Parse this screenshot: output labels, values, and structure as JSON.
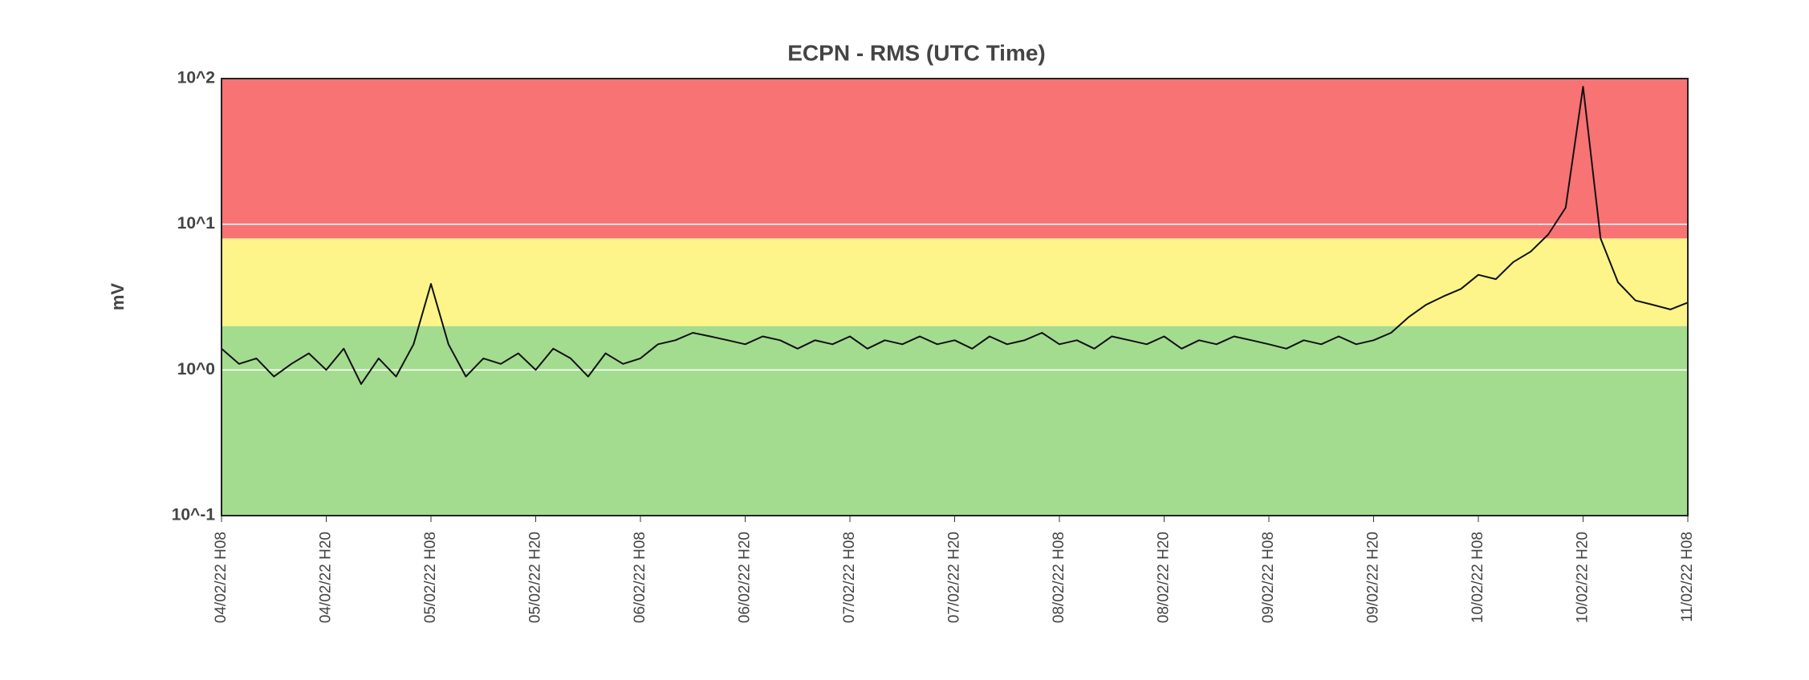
{
  "chart_data": {
    "type": "line",
    "title": "ECPN - RMS (UTC Time)",
    "y_label": "mV",
    "log_scale": true,
    "grid": true,
    "grid_color": "#ffffff",
    "bands": [
      {
        "from": 0.1,
        "to": 2,
        "color": "#a3dc8f"
      },
      {
        "from": 2,
        "to": 8,
        "color": "#fdf58a"
      },
      {
        "from": 8,
        "to": 100,
        "color": "#f87374"
      }
    ],
    "ylim": [
      0.1,
      100
    ],
    "yticks": [
      {
        "value": 0.1,
        "label": "10^-1"
      },
      {
        "value": 1,
        "label": "10^0"
      },
      {
        "value": 10,
        "label": "10^1"
      },
      {
        "value": 100,
        "label": "10^2"
      }
    ],
    "xlim": [
      "2022-02-04T08:00",
      "2022-02-11T08:00"
    ],
    "xticks": [
      {
        "value": "2022-02-04T08:00",
        "label": "04/02/22 H08"
      },
      {
        "value": "2022-02-04T20:00",
        "label": "04/02/22 H20"
      },
      {
        "value": "2022-02-05T08:00",
        "label": "05/02/22 H08"
      },
      {
        "value": "2022-02-05T20:00",
        "label": "05/02/22 H20"
      },
      {
        "value": "2022-02-06T08:00",
        "label": "06/02/22 H08"
      },
      {
        "value": "2022-02-06T20:00",
        "label": "06/02/22 H20"
      },
      {
        "value": "2022-02-07T08:00",
        "label": "07/02/22 H08"
      },
      {
        "value": "2022-02-07T20:00",
        "label": "07/02/22 H20"
      },
      {
        "value": "2022-02-08T08:00",
        "label": "08/02/22 H08"
      },
      {
        "value": "2022-02-08T20:00",
        "label": "08/02/22 H20"
      },
      {
        "value": "2022-02-09T08:00",
        "label": "09/02/22 H08"
      },
      {
        "value": "2022-02-09T20:00",
        "label": "09/02/22 H20"
      },
      {
        "value": "2022-02-10T08:00",
        "label": "10/02/22 H08"
      },
      {
        "value": "2022-02-10T20:00",
        "label": "10/02/22 H20"
      },
      {
        "value": "2022-02-11T08:00",
        "label": "11/02/22 H08"
      }
    ],
    "x": [
      "2022-02-04T08:00",
      "2022-02-04T10:00",
      "2022-02-04T12:00",
      "2022-02-04T14:00",
      "2022-02-04T16:00",
      "2022-02-04T18:00",
      "2022-02-04T20:00",
      "2022-02-04T22:00",
      "2022-02-05T00:00",
      "2022-02-05T02:00",
      "2022-02-05T04:00",
      "2022-02-05T06:00",
      "2022-02-05T08:00",
      "2022-02-05T10:00",
      "2022-02-05T12:00",
      "2022-02-05T14:00",
      "2022-02-05T16:00",
      "2022-02-05T18:00",
      "2022-02-05T20:00",
      "2022-02-05T22:00",
      "2022-02-06T00:00",
      "2022-02-06T02:00",
      "2022-02-06T04:00",
      "2022-02-06T06:00",
      "2022-02-06T08:00",
      "2022-02-06T10:00",
      "2022-02-06T12:00",
      "2022-02-06T14:00",
      "2022-02-06T16:00",
      "2022-02-06T18:00",
      "2022-02-06T20:00",
      "2022-02-06T22:00",
      "2022-02-07T00:00",
      "2022-02-07T02:00",
      "2022-02-07T04:00",
      "2022-02-07T06:00",
      "2022-02-07T08:00",
      "2022-02-07T10:00",
      "2022-02-07T12:00",
      "2022-02-07T14:00",
      "2022-02-07T16:00",
      "2022-02-07T18:00",
      "2022-02-07T20:00",
      "2022-02-07T22:00",
      "2022-02-08T00:00",
      "2022-02-08T02:00",
      "2022-02-08T04:00",
      "2022-02-08T06:00",
      "2022-02-08T08:00",
      "2022-02-08T10:00",
      "2022-02-08T12:00",
      "2022-02-08T14:00",
      "2022-02-08T16:00",
      "2022-02-08T18:00",
      "2022-02-08T20:00",
      "2022-02-08T22:00",
      "2022-02-09T00:00",
      "2022-02-09T02:00",
      "2022-02-09T04:00",
      "2022-02-09T06:00",
      "2022-02-09T08:00",
      "2022-02-09T10:00",
      "2022-02-09T12:00",
      "2022-02-09T14:00",
      "2022-02-09T16:00",
      "2022-02-09T18:00",
      "2022-02-09T20:00",
      "2022-02-09T22:00",
      "2022-02-10T00:00",
      "2022-02-10T02:00",
      "2022-02-10T04:00",
      "2022-02-10T06:00",
      "2022-02-10T08:00",
      "2022-02-10T10:00",
      "2022-02-10T12:00",
      "2022-02-10T14:00",
      "2022-02-10T16:00",
      "2022-02-10T18:00",
      "2022-02-10T20:00",
      "2022-02-10T22:00",
      "2022-02-11T00:00",
      "2022-02-11T02:00",
      "2022-02-11T04:00",
      "2022-02-11T06:00",
      "2022-02-11T08:00"
    ],
    "series": [
      {
        "color": "#111111",
        "values": [
          1.4,
          1.1,
          1.2,
          0.9,
          1.1,
          1.3,
          1.0,
          1.4,
          0.8,
          1.2,
          0.9,
          1.5,
          3.9,
          1.5,
          0.9,
          1.2,
          1.1,
          1.3,
          1.0,
          1.4,
          1.2,
          0.9,
          1.3,
          1.1,
          1.2,
          1.5,
          1.6,
          1.8,
          1.7,
          1.6,
          1.5,
          1.7,
          1.6,
          1.4,
          1.6,
          1.5,
          1.7,
          1.4,
          1.6,
          1.5,
          1.7,
          1.5,
          1.6,
          1.4,
          1.7,
          1.5,
          1.6,
          1.8,
          1.5,
          1.6,
          1.4,
          1.7,
          1.6,
          1.5,
          1.7,
          1.4,
          1.6,
          1.5,
          1.7,
          1.6,
          1.5,
          1.4,
          1.6,
          1.5,
          1.7,
          1.5,
          1.6,
          1.8,
          2.3,
          2.8,
          3.2,
          3.6,
          4.5,
          4.2,
          5.5,
          6.5,
          8.5,
          13,
          88,
          8,
          4,
          3,
          2.8,
          2.6,
          2.9
        ]
      }
    ]
  }
}
